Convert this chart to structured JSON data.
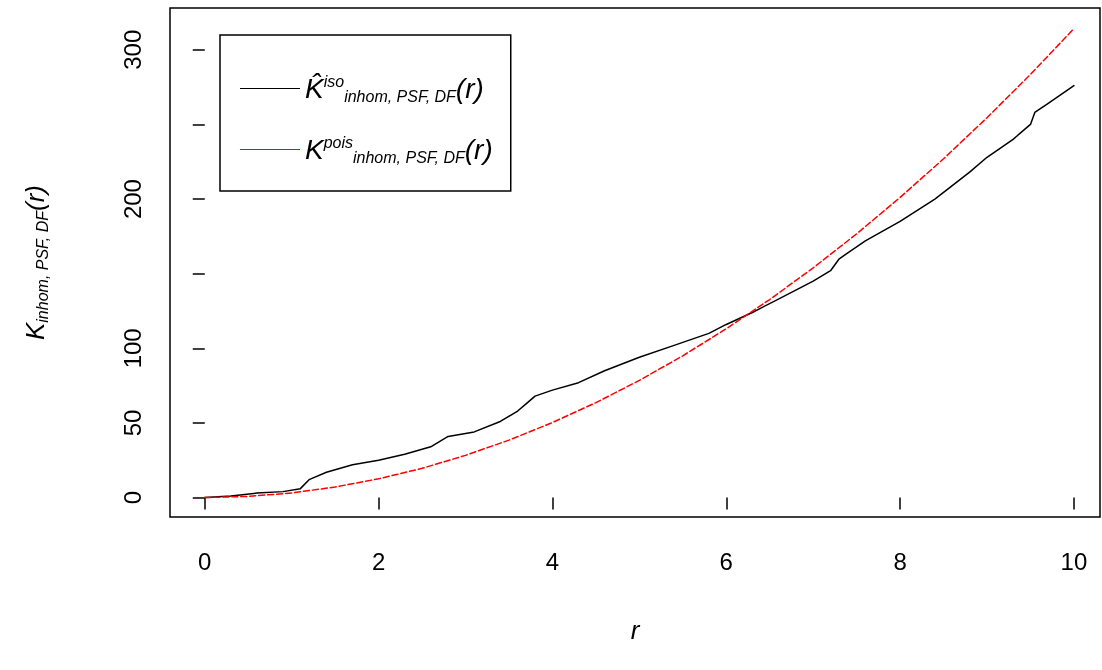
{
  "chart_data": {
    "type": "line",
    "xlabel": "r",
    "ylabel": "K$_{inhom, PSF, DF}$(r)",
    "xlim": [
      -0.4,
      10.3
    ],
    "xticks": [
      0,
      2,
      4,
      6,
      8,
      10
    ],
    "ylim": [
      -13,
      328
    ],
    "yticks": [
      0,
      50,
      100,
      {
        "value": 150,
        "label": null
      },
      200,
      {
        "value": 250,
        "label": null
      },
      300
    ],
    "grid": false,
    "legend": "top left",
    "marker": "none",
    "series": [
      {
        "name": "K̂$^{iso}$$_{inhom, PSF, DF}$(r)",
        "color": "#000000",
        "line_style": "solid",
        "x": [
          0,
          0.3,
          0.6,
          0.9,
          1.1,
          1.2,
          1.4,
          1.7,
          2.0,
          2.3,
          2.6,
          2.8,
          3.1,
          3.4,
          3.6,
          3.7,
          3.8,
          4.0,
          4.3,
          4.6,
          5.0,
          5.4,
          5.8,
          6.0,
          6.3,
          6.6,
          7.0,
          7.2,
          7.3,
          7.6,
          8.0,
          8.4,
          8.8,
          9.0,
          9.3,
          9.5,
          9.55,
          9.7,
          10.0
        ],
        "values": [
          0,
          1,
          3,
          4,
          6,
          12,
          17,
          22,
          25,
          29,
          34,
          41,
          44,
          51,
          58,
          63,
          68,
          72,
          77,
          85,
          94,
          102,
          110,
          116,
          124,
          133,
          145,
          152,
          160,
          172,
          185,
          200,
          218,
          228,
          240,
          250,
          258,
          264,
          276
        ]
      },
      {
        "name": "K$^{pois}$$_{inhom, PSF, DF}$(r)",
        "color": "#ff0000",
        "line_style": "dashed",
        "x": [
          0,
          0.5,
          1,
          1.5,
          2,
          2.5,
          3,
          3.5,
          4,
          4.5,
          5,
          5.5,
          6,
          6.5,
          7,
          7.5,
          8,
          8.5,
          9,
          9.5,
          10
        ],
        "values": [
          0,
          0.8,
          3.1,
          7.1,
          12.6,
          19.6,
          28.3,
          38.5,
          50.3,
          63.6,
          78.5,
          95.0,
          113.1,
          132.7,
          153.9,
          176.7,
          201.1,
          227.0,
          254.5,
          283.5,
          314.2
        ]
      }
    ]
  }
}
